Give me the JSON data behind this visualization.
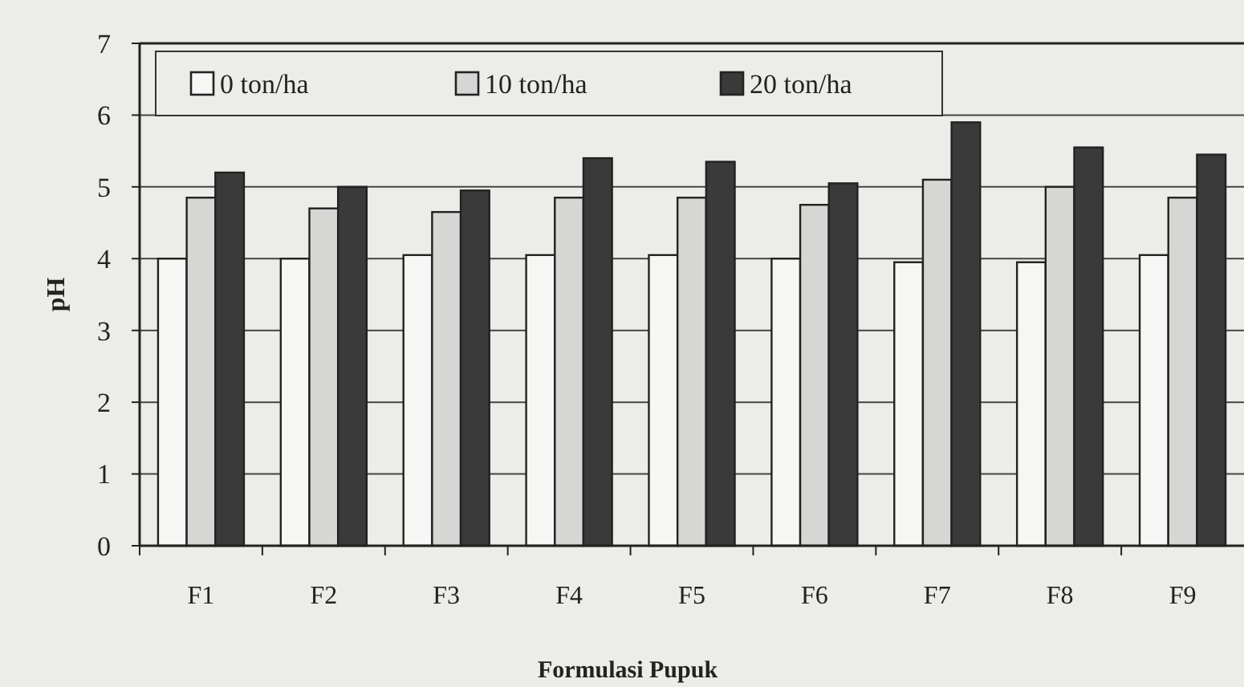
{
  "chart_data": {
    "type": "bar",
    "xlabel": "Formulasi Pupuk",
    "ylabel": "pH",
    "categories": [
      "F1",
      "F2",
      "F3",
      "F4",
      "F5",
      "F6",
      "F7",
      "F8",
      "F9"
    ],
    "series": [
      {
        "name": "0 ton/ha",
        "color": "#f6f6f4",
        "values": [
          4.0,
          4.0,
          4.05,
          4.05,
          4.05,
          4.0,
          3.95,
          3.95,
          4.05
        ]
      },
      {
        "name": "10 ton/ha",
        "color": "#d6d6d4",
        "values": [
          4.85,
          4.7,
          4.65,
          4.85,
          4.85,
          4.75,
          5.1,
          5.0,
          4.85
        ]
      },
      {
        "name": "20 ton/ha",
        "color": "#3a3a3a",
        "values": [
          5.2,
          5.0,
          4.95,
          5.4,
          5.35,
          5.05,
          5.9,
          5.55,
          5.45
        ]
      }
    ],
    "ylim": [
      0,
      7
    ],
    "yticks": [
      0,
      1,
      2,
      3,
      4,
      5,
      6,
      7
    ],
    "grid": "y",
    "legend": "top left"
  }
}
